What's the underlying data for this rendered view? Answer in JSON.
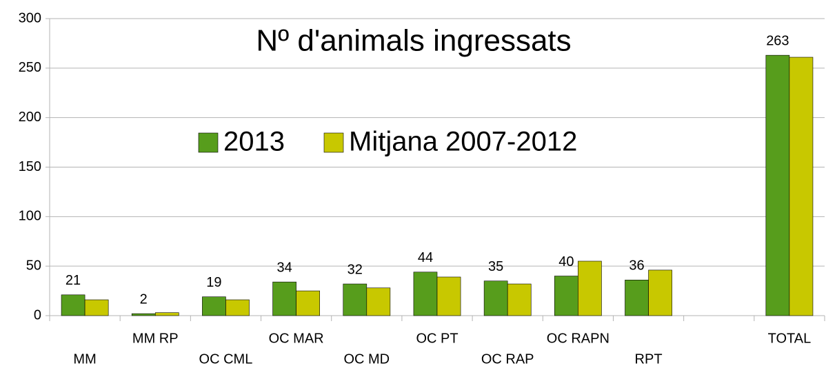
{
  "chart_data": {
    "type": "bar",
    "title": "Nº d'animals ingressats",
    "categories": [
      "MM",
      "MM RP",
      "OC CML",
      "OC MAR",
      "OC MD",
      "OC PT",
      "OC RAP",
      "OC RAPN",
      "RPT",
      null,
      "TOTAL"
    ],
    "series": [
      {
        "name": "2013",
        "color": "#579d1c",
        "show_labels": true,
        "values": [
          21,
          2,
          19,
          34,
          32,
          44,
          35,
          40,
          36,
          null,
          263
        ]
      },
      {
        "name": "Mitjana 2007-2012",
        "color": "#c8c800",
        "show_labels": false,
        "values": [
          16,
          3,
          16,
          25,
          28,
          39,
          32,
          55,
          46,
          null,
          261
        ]
      }
    ],
    "ylim": [
      0,
      300
    ],
    "yticks": [
      0,
      50,
      100,
      150,
      200,
      250,
      300
    ],
    "grid": true
  }
}
